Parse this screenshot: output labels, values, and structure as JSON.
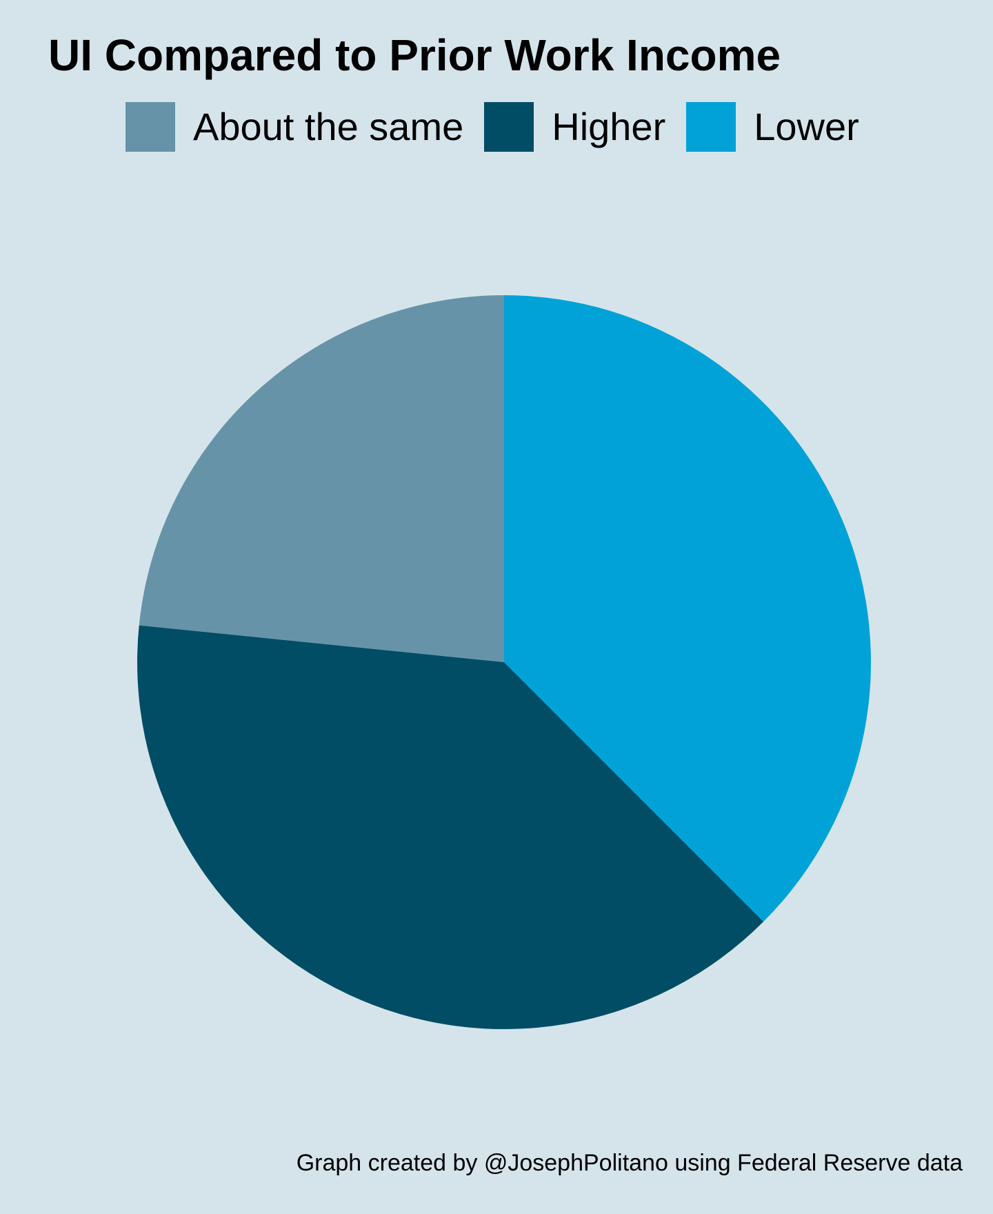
{
  "title": "UI Compared to Prior Work Income",
  "caption": "Graph created by @JosephPolitano using Federal Reserve data",
  "legend": [
    {
      "label": "About the same",
      "color": "#6793a8"
    },
    {
      "label": "Higher",
      "color": "#004d65"
    },
    {
      "label": "Lower",
      "color": "#00a2d8"
    }
  ],
  "chart_data": {
    "type": "pie",
    "legend_position": "top",
    "slices": [
      {
        "label": "About the same",
        "value": 23.4,
        "color": "#6793a8"
      },
      {
        "label": "Higher",
        "value": 39.1,
        "color": "#004d65"
      },
      {
        "label": "Lower",
        "value": 37.5,
        "color": "#00a2d8"
      }
    ]
  }
}
